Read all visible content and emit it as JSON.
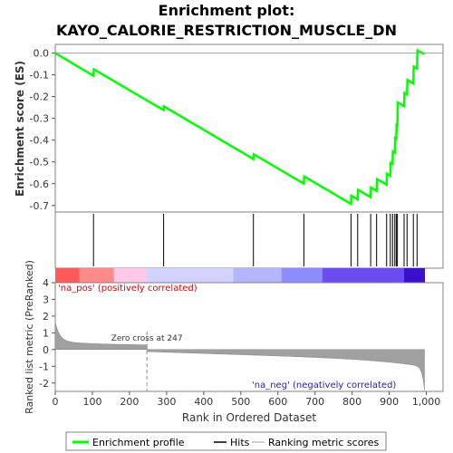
{
  "chart_data": {
    "type": "line",
    "title_line1": "Enrichment plot:",
    "title_line2": "KAYO_CALORIE_RESTRICTION_MUSCLE_DN",
    "es_panel": {
      "ylabel": "Enrichment score (ES)",
      "ylim": [
        -0.73,
        0.04
      ],
      "yticks": [
        0.0,
        -0.1,
        -0.2,
        -0.3,
        -0.4,
        -0.5,
        -0.6,
        -0.7
      ],
      "ytick_labels": [
        "0.0",
        "-0.1",
        "-0.2",
        "-0.3",
        "-0.4",
        "-0.5",
        "-0.6",
        "-0.7"
      ],
      "line_color": "#00ff00",
      "profile": [
        [
          0,
          0.0
        ],
        [
          103,
          -0.105
        ],
        [
          104,
          -0.075
        ],
        [
          292,
          -0.262
        ],
        [
          293,
          -0.245
        ],
        [
          534,
          -0.487
        ],
        [
          535,
          -0.465
        ],
        [
          670,
          -0.6
        ],
        [
          671,
          -0.567
        ],
        [
          797,
          -0.693
        ],
        [
          798,
          -0.655
        ],
        [
          815,
          -0.672
        ],
        [
          816,
          -0.628
        ],
        [
          850,
          -0.662
        ],
        [
          851,
          -0.618
        ],
        [
          866,
          -0.633
        ],
        [
          867,
          -0.579
        ],
        [
          893,
          -0.605
        ],
        [
          894,
          -0.555
        ],
        [
          903,
          -0.564
        ],
        [
          904,
          -0.505
        ],
        [
          909,
          -0.51
        ],
        [
          910,
          -0.452
        ],
        [
          915,
          -0.457
        ],
        [
          916,
          -0.39
        ],
        [
          919,
          -0.393
        ],
        [
          920,
          -0.33
        ],
        [
          922,
          -0.332
        ],
        [
          923,
          -0.227
        ],
        [
          940,
          -0.244
        ],
        [
          941,
          -0.183
        ],
        [
          948,
          -0.19
        ],
        [
          949,
          -0.123
        ],
        [
          965,
          -0.14
        ],
        [
          966,
          -0.062
        ],
        [
          975,
          -0.071
        ],
        [
          976,
          0.012
        ],
        [
          995,
          -0.005
        ]
      ]
    },
    "hits": [
      103,
      292,
      534,
      670,
      797,
      815,
      850,
      866,
      893,
      903,
      909,
      915,
      919,
      922,
      940,
      948,
      965,
      975
    ],
    "ranking_panel": {
      "ylabel": "Ranked list metric (PreRanked)",
      "ylim": [
        -2.5,
        4.0
      ],
      "yticks": [
        4,
        3,
        2,
        1,
        0,
        -1,
        -2
      ],
      "ytick_labels": [
        "4",
        "3",
        "2",
        "1",
        "0",
        "-1",
        "-2"
      ],
      "pos_label": "'na_pos' (positively correlated)",
      "neg_label": "'na_neg' (negatively correlated)",
      "zero_cross_label": "Zero cross at 247",
      "zero_cross": 247
    },
    "xlabel": "Rank in Ordered Dataset",
    "xlim": [
      0,
      1045
    ],
    "xticks": [
      0,
      100,
      200,
      300,
      400,
      500,
      600,
      700,
      800,
      900,
      1000
    ],
    "xtick_labels": [
      "0",
      "100",
      "200",
      "300",
      "400",
      "500",
      "600",
      "700",
      "800",
      "900",
      "1,000"
    ],
    "n_genes": 995,
    "legend": {
      "entries": [
        {
          "label": "Enrichment profile",
          "color": "#00ff00"
        },
        {
          "label": "Hits",
          "color": "#000000"
        },
        {
          "label": "Ranking metric scores",
          "color": "#c0c0c0"
        }
      ]
    }
  }
}
